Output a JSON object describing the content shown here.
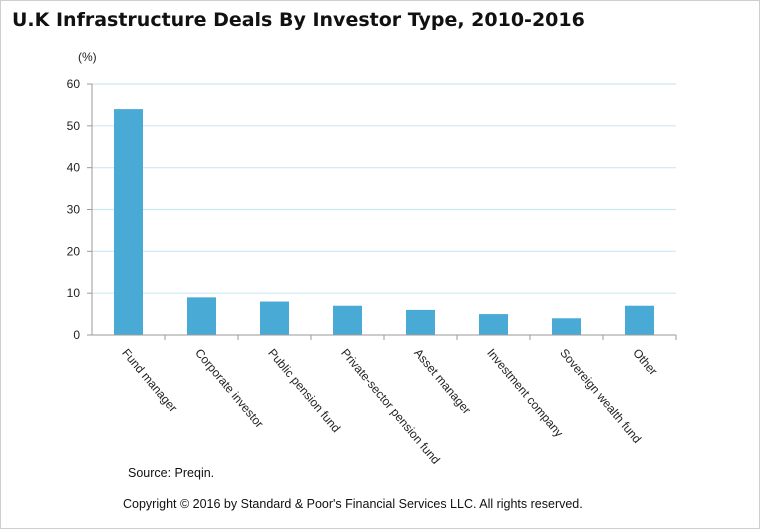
{
  "title": "U.K Infrastructure Deals By Investor Type, 2010-2016",
  "chart_data": {
    "type": "bar",
    "title": "U.K Infrastructure Deals By Investor Type, 2010-2016",
    "unit_label": "(%)",
    "categories": [
      "Fund manager",
      "Corporate investor",
      "Public pension fund",
      "Private-sector pension fund",
      "Asset manager",
      "Investment company",
      "Sovereign wealth fund",
      "Other"
    ],
    "values": [
      54,
      9,
      8,
      7,
      6,
      5,
      4,
      7
    ],
    "ylim": [
      0,
      60
    ],
    "yticks": [
      0,
      10,
      20,
      30,
      40,
      50,
      60
    ],
    "grid": true,
    "bar_color": "#4aaad6",
    "grid_color": "#cde8f4",
    "axis_color": "#9a9a9a"
  },
  "footer": {
    "source": "Source: Preqin.",
    "copyright": "Copyright © 2016 by Standard & Poor's Financial Services LLC. All rights reserved."
  }
}
